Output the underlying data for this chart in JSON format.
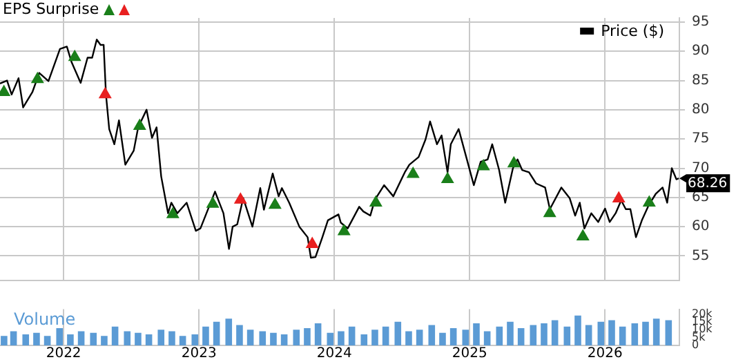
{
  "chart_data": [
    {
      "type": "line",
      "legend_title": "EPS Surprise",
      "legend": "top right",
      "grid": true,
      "tick_labels": "y",
      "xlim": [
        2021.53,
        2026.55
      ],
      "xticks": [
        2022,
        2023,
        2024,
        2025,
        2026
      ],
      "ylim": [
        50.8,
        95.7
      ],
      "yticks": [
        55,
        60,
        65,
        70,
        75,
        80,
        85,
        90,
        95
      ],
      "annotations": [
        {
          "text": "68.26",
          "x": 2026.545,
          "y": 68.26
        }
      ],
      "series": [
        {
          "name": "Price ($)",
          "color": "#000000",
          "x": [
            2021.53,
            2021.582,
            2021.616,
            2021.667,
            2021.701,
            2021.769,
            2021.82,
            2021.888,
            2021.973,
            2022.024,
            2022.058,
            2022.126,
            2022.177,
            2022.211,
            2022.245,
            2022.273,
            2022.296,
            2022.313,
            2022.337,
            2022.375,
            2022.409,
            2022.456,
            2022.518,
            2022.551,
            2022.613,
            2022.653,
            2022.687,
            2022.721,
            2022.772,
            2022.796,
            2022.84,
            2022.909,
            2022.977,
            2023.011,
            2023.119,
            2023.181,
            2023.222,
            2023.249,
            2023.283,
            2023.327,
            2023.395,
            2023.453,
            2023.48,
            2023.545,
            2023.589,
            2023.613,
            2023.667,
            2023.742,
            2023.803,
            2023.827,
            2023.861,
            2023.912,
            2023.953,
            2024.031,
            2024.048,
            2024.099,
            2024.184,
            2024.215,
            2024.266,
            2024.3,
            2024.368,
            2024.436,
            2024.521,
            2024.555,
            2024.623,
            2024.674,
            2024.708,
            2024.759,
            2024.793,
            2024.837,
            2024.861,
            2024.919,
            2024.98,
            2025.031,
            2025.082,
            2025.133,
            2025.167,
            2025.218,
            2025.263,
            2025.32,
            2025.354,
            2025.388,
            2025.439,
            2025.491,
            2025.558,
            2025.593,
            2025.678,
            2025.739,
            2025.78,
            2025.814,
            2025.848,
            2025.899,
            2025.95,
            2026.001,
            2026.035,
            2026.079,
            2026.12,
            2026.154,
            2026.188,
            2026.229,
            2026.273,
            2026.324,
            2026.375,
            2026.426,
            2026.46,
            2026.494,
            2026.528,
            2026.545
          ],
          "values": [
            84.5,
            85,
            82.6,
            85.4,
            80.4,
            83,
            86.3,
            84.9,
            90.4,
            90.8,
            88.2,
            84.6,
            88.9,
            88.9,
            92,
            91.1,
            91.1,
            82.6,
            76.7,
            74.1,
            78.2,
            70.6,
            73,
            77,
            80,
            75.2,
            77,
            68.6,
            62.3,
            64.1,
            62.3,
            64.1,
            59.3,
            59.7,
            66,
            62.3,
            56.2,
            60,
            60.4,
            64.9,
            60,
            66.6,
            62.9,
            69.1,
            65.2,
            66.6,
            64.1,
            60,
            58.2,
            54.7,
            54.8,
            58.2,
            61.1,
            62.1,
            60.7,
            59.7,
            63.4,
            62.6,
            61.9,
            64.6,
            67.1,
            65.2,
            69.3,
            70.6,
            71.9,
            74.9,
            78,
            74.1,
            75.6,
            69.3,
            74.1,
            76.7,
            71.5,
            67.1,
            71.1,
            71.5,
            74.1,
            69.7,
            64.1,
            70,
            71.5,
            69.7,
            69.3,
            67.4,
            66.7,
            63,
            66.7,
            64.9,
            61.9,
            64.1,
            59.7,
            62.3,
            60.8,
            63.1,
            60.8,
            62.3,
            64.5,
            63,
            63,
            58.2,
            61.1,
            63.7,
            65.6,
            66.7,
            64.1,
            70,
            68.1,
            68.26
          ]
        },
        {
          "type": "scatter",
          "color": "#1a7f1a",
          "marker": "triangle",
          "x": [
            2021.559,
            2021.807,
            2022.082,
            2022.562,
            2022.807,
            2023.102,
            2023.562,
            2024.072,
            2024.307,
            2024.582,
            2024.837,
            2025.102,
            2025.327,
            2025.592,
            2025.837,
            2026.327
          ],
          "values": [
            83,
            85.2,
            89,
            77.2,
            62.1,
            63.9,
            63.7,
            59.2,
            64.1,
            69,
            68.1,
            70.3,
            70.8,
            62.3,
            58.3,
            64.1
          ]
        },
        {
          "type": "scatter",
          "color": "#e82020",
          "marker": "triangle",
          "x": [
            2022.307,
            2023.307,
            2023.837,
            2026.102
          ],
          "values": [
            82.6,
            64.6,
            57,
            64.8
          ]
        }
      ]
    },
    {
      "type": "bar",
      "title": "Volume",
      "grid": "x",
      "color": "#5b9bd5",
      "xlim": [
        2021.53,
        2026.55
      ],
      "xticks": [
        2022,
        2023,
        2024,
        2025,
        2026
      ],
      "ylim": [
        0,
        23000
      ],
      "yticks": [
        {
          "value": 0,
          "label": "0"
        },
        {
          "value": 5000,
          "label": "5k"
        },
        {
          "value": 10000,
          "label": "10k"
        },
        {
          "value": 15000,
          "label": "15k"
        },
        {
          "value": 20000,
          "label": "20k"
        }
      ],
      "x": [
        2021.56,
        2021.63,
        2021.72,
        2021.8,
        2021.88,
        2021.97,
        2022.05,
        2022.13,
        2022.22,
        2022.3,
        2022.38,
        2022.47,
        2022.55,
        2022.63,
        2022.72,
        2022.8,
        2022.88,
        2022.97,
        2023.05,
        2023.13,
        2023.22,
        2023.3,
        2023.38,
        2023.47,
        2023.55,
        2023.63,
        2023.72,
        2023.8,
        2023.88,
        2023.97,
        2024.05,
        2024.13,
        2024.22,
        2024.3,
        2024.38,
        2024.47,
        2024.55,
        2024.63,
        2024.72,
        2024.8,
        2024.88,
        2024.97,
        2025.05,
        2025.13,
        2025.22,
        2025.3,
        2025.38,
        2025.47,
        2025.55,
        2025.63,
        2025.72,
        2025.8,
        2025.88,
        2025.97,
        2026.05,
        2026.13,
        2026.22,
        2026.3,
        2026.38,
        2026.47
      ],
      "values": [
        6000,
        9000,
        7000,
        8000,
        6000,
        11000,
        7000,
        9000,
        8000,
        6000,
        12000,
        9000,
        8000,
        7000,
        10000,
        9000,
        6000,
        7000,
        12000,
        15000,
        17000,
        13000,
        10000,
        9000,
        8000,
        7000,
        10000,
        11000,
        14000,
        8000,
        9000,
        12000,
        7000,
        10000,
        12000,
        15000,
        9000,
        10000,
        13000,
        8000,
        11000,
        10000,
        14000,
        9000,
        12000,
        15000,
        11000,
        13000,
        14000,
        16000,
        12000,
        19000,
        13000,
        15000,
        16000,
        12000,
        14000,
        15000,
        17000,
        16000
      ]
    }
  ]
}
